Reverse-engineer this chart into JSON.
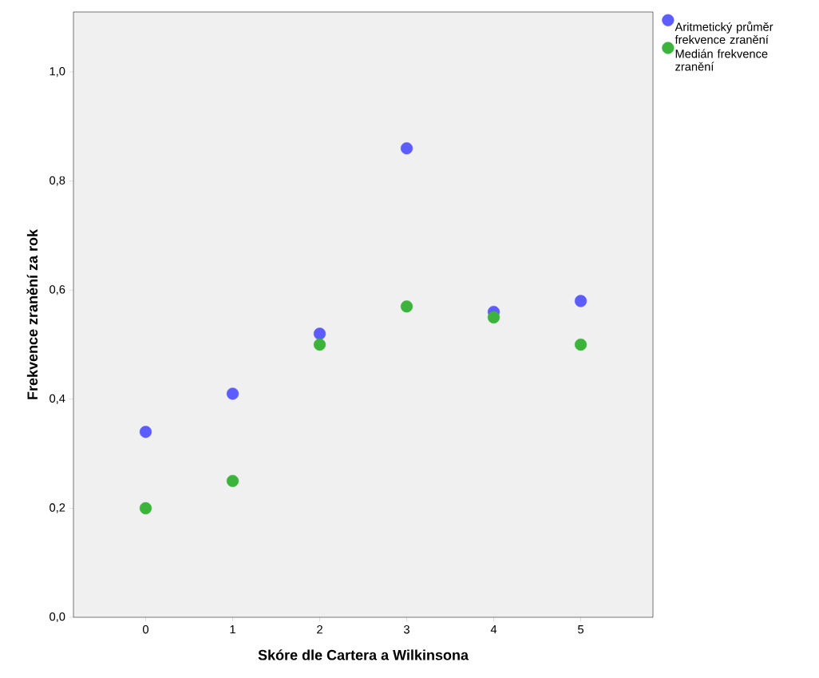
{
  "chart_data": {
    "type": "scatter",
    "xlabel": "Skóre dle Cartera a Wilkinsona",
    "ylabel": "Frekvence zranění za rok",
    "x": [
      0,
      1,
      2,
      3,
      4,
      5
    ],
    "series": [
      {
        "name": "Aritmetický průměr frekvence zranění",
        "color": "#5c5cff",
        "values": [
          0.34,
          0.41,
          0.52,
          0.86,
          0.56,
          0.58
        ]
      },
      {
        "name": "Medián frekvence zranění",
        "color": "#3cb43c",
        "values": [
          0.2,
          0.25,
          0.5,
          0.57,
          0.55,
          0.5
        ]
      }
    ],
    "xlim": [
      -0.83,
      5.83
    ],
    "ylim": [
      0,
      1.11
    ],
    "xticks": [
      0,
      1,
      2,
      3,
      4,
      5
    ],
    "yticks": [
      {
        "value": 0,
        "label": "0,0"
      },
      {
        "value": 0.2,
        "label": "0,2"
      },
      {
        "value": 0.4,
        "label": "0,4"
      },
      {
        "value": 0.6,
        "label": "0,6"
      },
      {
        "value": 0.8,
        "label": "0,8"
      },
      {
        "value": 1.0,
        "label": "1,0"
      }
    ],
    "marker": "circle",
    "grid": false,
    "legend": "top right"
  }
}
